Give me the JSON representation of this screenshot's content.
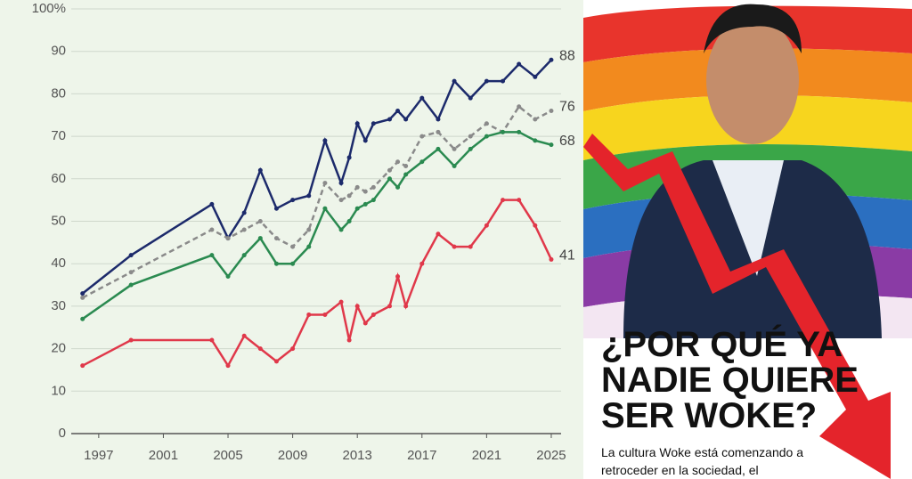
{
  "chart_data": {
    "type": "line",
    "x": [
      1996,
      1999,
      2004,
      2005,
      2006,
      2007,
      2008,
      2009,
      2010,
      2011,
      2012,
      2012.5,
      2013,
      2013.5,
      2014,
      2015,
      2015.5,
      2016,
      2017,
      2018,
      2019,
      2020,
      2021,
      2022,
      2023,
      2024,
      2025
    ],
    "series": [
      {
        "color": "#1c2a6b",
        "values": [
          33,
          42,
          54,
          46,
          52,
          62,
          53,
          55,
          56,
          69,
          59,
          65,
          73,
          69,
          73,
          74,
          76,
          74,
          79,
          74,
          83,
          79,
          83,
          83,
          87,
          84,
          88
        ]
      },
      {
        "color": "#8a8a8a",
        "dashed": true,
        "values": [
          32,
          38,
          48,
          46,
          48,
          50,
          46,
          44,
          48,
          59,
          55,
          56,
          58,
          57,
          58,
          62,
          64,
          63,
          70,
          71,
          67,
          70,
          73,
          71,
          77,
          74,
          76
        ]
      },
      {
        "color": "#2a8a50",
        "values": [
          27,
          35,
          42,
          37,
          42,
          46,
          40,
          40,
          44,
          53,
          48,
          50,
          53,
          54,
          55,
          60,
          58,
          61,
          64,
          67,
          63,
          67,
          70,
          71,
          71,
          69,
          68
        ]
      },
      {
        "color": "#e0384a",
        "values": [
          16,
          22,
          22,
          16,
          23,
          20,
          17,
          20,
          28,
          28,
          31,
          22,
          30,
          26,
          28,
          30,
          37,
          30,
          40,
          47,
          44,
          44,
          49,
          55,
          55,
          49,
          41
        ]
      }
    ],
    "xlim": [
      1995.3,
      2026.6
    ],
    "xticks": [
      1997,
      2001,
      2005,
      2009,
      2013,
      2017,
      2021,
      2025
    ],
    "ylim": [
      0,
      100
    ],
    "yticks": [
      0,
      10,
      20,
      30,
      40,
      50,
      60,
      70,
      80,
      {
        "value": 90,
        "label": "90"
      },
      {
        "value": 100,
        "label": "100%"
      }
    ],
    "grid": true
  },
  "poster": {
    "headline": [
      "¿POR QUÉ YA",
      "NADIE QUIERE",
      "SER WOKE?"
    ],
    "body": [
      "La cultura Woke está comenzando a",
      "retroceder en la sociedad, el"
    ]
  }
}
